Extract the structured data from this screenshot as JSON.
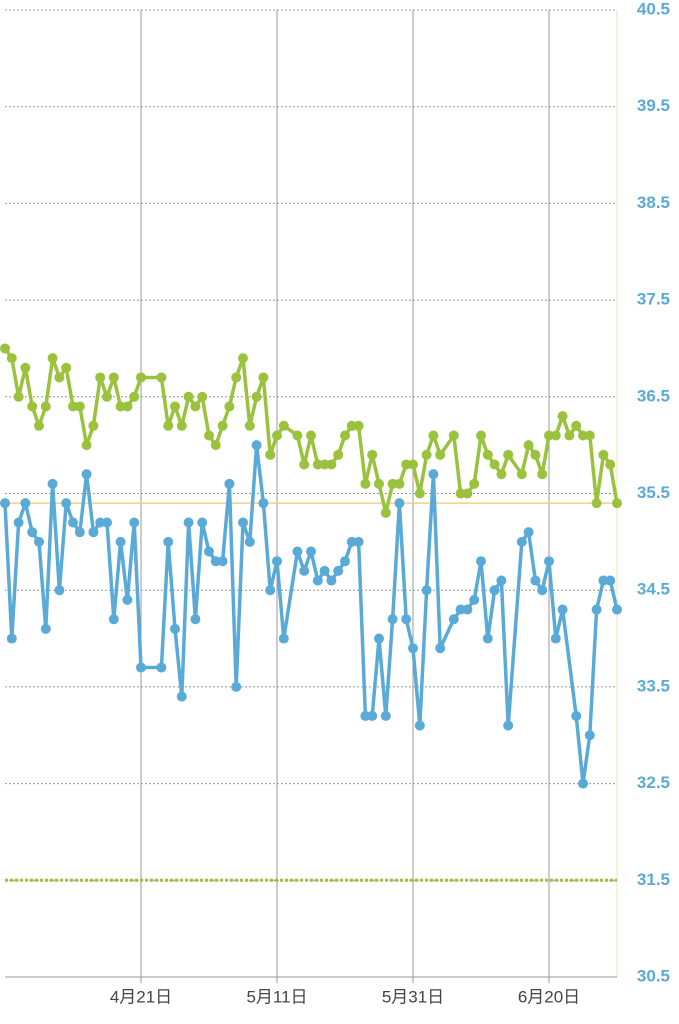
{
  "chart_data": {
    "type": "line",
    "xlim": [
      0,
      90
    ],
    "xticks": [
      {
        "value": 20,
        "label": "4月21日"
      },
      {
        "value": 40,
        "label": "5月11日"
      },
      {
        "value": 60,
        "label": "5月31日"
      },
      {
        "value": 80,
        "label": "6月20日"
      }
    ],
    "ylim": [
      30.5,
      40.5
    ],
    "yticks": [
      30.5,
      31.5,
      32.5,
      33.5,
      34.5,
      35.5,
      36.5,
      37.5,
      38.5,
      39.5,
      40.5
    ],
    "grid": true,
    "tick_color": "#5aaad8",
    "reference_lines": [
      {
        "value": 35.4,
        "color": "#f3cf8a",
        "dashed": false
      },
      {
        "value": 31.5,
        "color": "#9bc23c",
        "dashed": true
      }
    ],
    "series": [
      {
        "color": "#9bc23c",
        "x": [
          0,
          1,
          2,
          3,
          4,
          5,
          6,
          7,
          8,
          9,
          10,
          11,
          12,
          13,
          14,
          15,
          16,
          17,
          18,
          19,
          20,
          23,
          24,
          25,
          26,
          27,
          28,
          29,
          30,
          31,
          32,
          33,
          34,
          35,
          36,
          37,
          38,
          39,
          40,
          41,
          43,
          44,
          45,
          46,
          47,
          48,
          49,
          50,
          51,
          52,
          53,
          54,
          55,
          56,
          57,
          58,
          59,
          60,
          61,
          62,
          63,
          64,
          66,
          67,
          68,
          69,
          70,
          71,
          72,
          73,
          74,
          76,
          77,
          78,
          79,
          80,
          81,
          82,
          83,
          84,
          85,
          86,
          87,
          88,
          89,
          90
        ],
        "values": [
          37.0,
          36.9,
          36.5,
          36.8,
          36.4,
          36.2,
          36.4,
          36.9,
          36.7,
          36.8,
          36.4,
          36.4,
          36.0,
          36.2,
          36.7,
          36.5,
          36.7,
          36.4,
          36.4,
          36.5,
          36.7,
          36.7,
          36.2,
          36.4,
          36.2,
          36.5,
          36.4,
          36.5,
          36.1,
          36.0,
          36.2,
          36.4,
          36.7,
          36.9,
          36.2,
          36.5,
          36.7,
          35.9,
          36.1,
          36.2,
          36.1,
          35.8,
          36.1,
          35.8,
          35.8,
          35.8,
          35.9,
          36.1,
          36.2,
          36.2,
          35.6,
          35.9,
          35.6,
          35.3,
          35.6,
          35.6,
          35.8,
          35.8,
          35.5,
          35.9,
          36.1,
          35.9,
          36.1,
          35.5,
          35.5,
          35.6,
          36.1,
          35.9,
          35.8,
          35.7,
          35.9,
          35.7,
          36.0,
          35.9,
          35.7,
          36.1,
          36.1,
          36.3,
          36.1,
          36.2,
          36.1,
          36.1,
          35.4,
          35.9,
          35.8,
          35.4
        ]
      },
      {
        "color": "#5aaad8",
        "x": [
          0,
          1,
          2,
          3,
          4,
          5,
          6,
          7,
          8,
          9,
          10,
          11,
          12,
          13,
          14,
          15,
          16,
          17,
          18,
          19,
          20,
          23,
          24,
          25,
          26,
          27,
          28,
          29,
          30,
          31,
          32,
          33,
          34,
          35,
          36,
          37,
          38,
          39,
          40,
          41,
          43,
          44,
          45,
          46,
          47,
          48,
          49,
          50,
          51,
          52,
          53,
          54,
          55,
          56,
          57,
          58,
          59,
          60,
          61,
          62,
          63,
          64,
          66,
          67,
          68,
          69,
          70,
          71,
          72,
          73,
          74,
          76,
          77,
          78,
          79,
          80,
          81,
          82,
          84,
          85,
          86,
          87,
          88,
          89,
          90
        ],
        "values": [
          35.4,
          34.0,
          35.2,
          35.4,
          35.1,
          35.0,
          34.1,
          35.6,
          34.5,
          35.4,
          35.2,
          35.1,
          35.7,
          35.1,
          35.2,
          35.2,
          34.2,
          35.0,
          34.4,
          35.2,
          33.7,
          33.7,
          35.0,
          34.1,
          33.4,
          35.2,
          34.2,
          35.2,
          34.9,
          34.8,
          34.8,
          35.6,
          33.5,
          35.2,
          35.0,
          36.0,
          35.4,
          34.5,
          34.8,
          34.0,
          34.9,
          34.7,
          34.9,
          34.6,
          34.7,
          34.6,
          34.7,
          34.8,
          35.0,
          35.0,
          33.2,
          33.2,
          34.0,
          33.2,
          34.2,
          35.4,
          34.2,
          33.9,
          33.1,
          34.5,
          35.7,
          33.9,
          34.2,
          34.3,
          34.3,
          34.4,
          34.8,
          34.0,
          34.5,
          34.6,
          33.1,
          35.0,
          35.1,
          34.6,
          34.5,
          34.8,
          34.0,
          34.3,
          33.2,
          32.5,
          33.0,
          34.3,
          34.6,
          34.6,
          34.3
        ]
      }
    ]
  }
}
